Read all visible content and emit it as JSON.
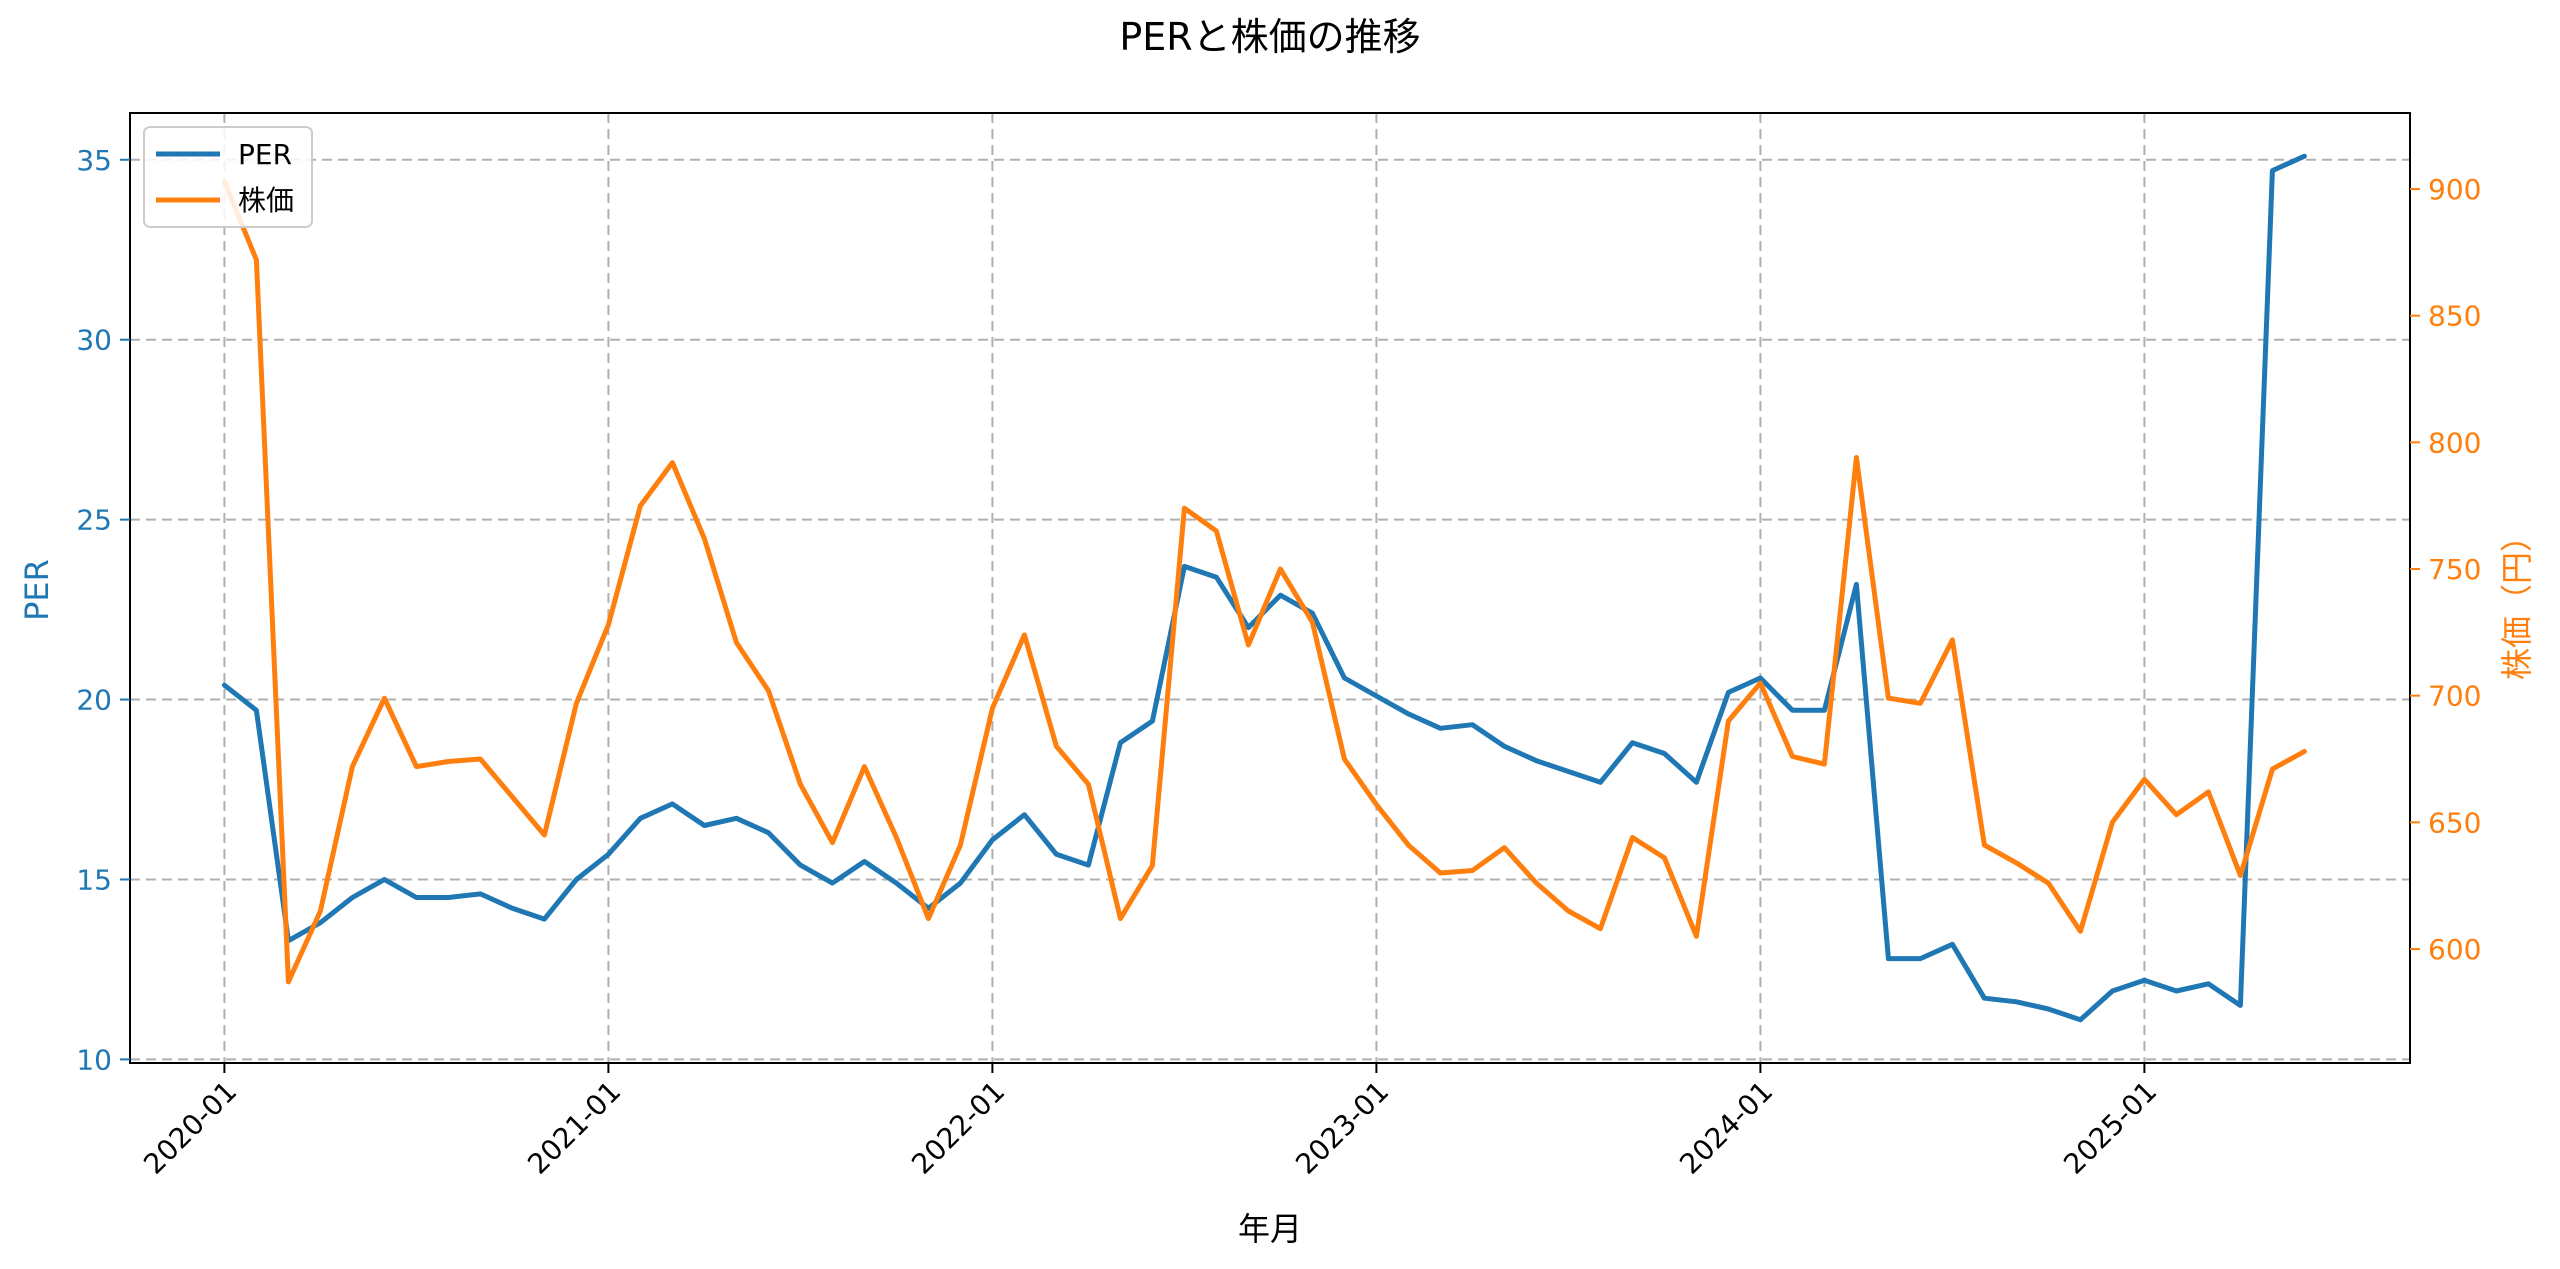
{
  "chart_data": {
    "type": "line",
    "title": "PERと株価の推移",
    "xlabel": "年月",
    "ylabel_left": "PER",
    "ylabel_right": "株価（円）",
    "grid": true,
    "legend_position": "top-left",
    "x_tick_labels": [
      "2020-01",
      "2021-01",
      "2022-01",
      "2023-01",
      "2024-01",
      "2025-01"
    ],
    "x_range": [
      -2.95,
      68.3
    ],
    "y_left_range": [
      9.9,
      36.3
    ],
    "y_left_ticks": [
      10,
      15,
      20,
      25,
      30,
      35
    ],
    "y_right_range": [
      555,
      930
    ],
    "y_right_ticks": [
      600,
      650,
      700,
      750,
      800,
      850,
      900
    ],
    "colors": {
      "per": "#1f77b4",
      "price": "#ff7f0e"
    },
    "series": [
      {
        "name": "PER",
        "axis": "left",
        "x": [
          0,
          1,
          2,
          3,
          4,
          5,
          6,
          7,
          8,
          9,
          10,
          11,
          12,
          13,
          14,
          15,
          16,
          17,
          18,
          19,
          20,
          21,
          22,
          23,
          24,
          25,
          26,
          27,
          28,
          29,
          30,
          31,
          32,
          33,
          34,
          35,
          36,
          37,
          38,
          39,
          40,
          41,
          42,
          43,
          44,
          45,
          46,
          47,
          48,
          49,
          50,
          51,
          52,
          53,
          54,
          55,
          56,
          57,
          58,
          59,
          60,
          61,
          62,
          63,
          64,
          65
        ],
        "values": [
          20.4,
          19.7,
          13.3,
          13.8,
          14.5,
          15.0,
          14.5,
          14.5,
          14.6,
          14.2,
          13.9,
          15.0,
          15.7,
          16.7,
          17.1,
          16.5,
          16.7,
          16.3,
          15.4,
          14.9,
          15.5,
          14.9,
          14.2,
          14.9,
          16.1,
          16.8,
          15.7,
          15.4,
          18.8,
          19.4,
          23.7,
          23.4,
          22.0,
          22.9,
          22.4,
          20.6,
          20.1,
          19.6,
          19.2,
          19.3,
          18.7,
          18.3,
          18.0,
          17.7,
          18.8,
          18.5,
          17.7,
          20.2,
          20.6,
          19.7,
          19.7,
          23.2,
          12.8,
          12.8,
          13.2,
          11.7,
          11.6,
          11.4,
          11.1,
          11.9,
          12.2,
          11.9,
          12.1,
          11.5,
          34.7,
          35.1
        ]
      },
      {
        "name": "株価",
        "axis": "right",
        "x": [
          0,
          1,
          2,
          3,
          4,
          5,
          6,
          7,
          8,
          9,
          10,
          11,
          12,
          13,
          14,
          15,
          16,
          17,
          18,
          19,
          20,
          21,
          22,
          23,
          24,
          25,
          26,
          27,
          28,
          29,
          30,
          31,
          32,
          33,
          34,
          35,
          36,
          37,
          38,
          39,
          40,
          41,
          42,
          43,
          44,
          45,
          46,
          47,
          48,
          49,
          50,
          51,
          52,
          53,
          54,
          55,
          56,
          57,
          58,
          59,
          60,
          61,
          62,
          63,
          64,
          65
        ],
        "values": [
          903,
          872,
          587,
          615,
          672,
          699,
          672,
          674,
          675,
          660,
          645,
          697,
          728,
          775,
          792,
          762,
          721,
          702,
          665,
          642,
          672,
          644,
          612,
          641,
          695,
          724,
          680,
          665,
          612,
          633,
          774,
          765,
          720,
          750,
          729,
          675,
          657,
          641,
          630,
          631,
          640,
          626,
          615,
          608,
          644,
          636,
          605,
          690,
          705,
          676,
          673,
          794,
          699,
          697,
          722,
          641,
          634,
          626,
          607,
          650,
          667,
          653,
          662,
          629,
          671,
          678
        ]
      }
    ]
  }
}
